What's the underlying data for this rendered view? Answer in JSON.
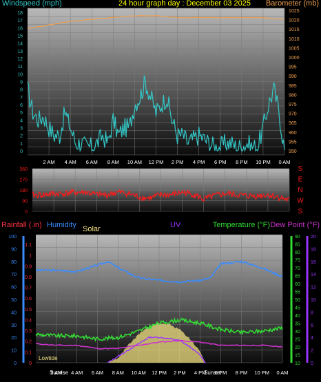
{
  "title": "24 hour graph day : December 03 2025",
  "time_labels": [
    "2 AM",
    "4 AM",
    "6 AM",
    "8 AM",
    "10 AM",
    "12 PM",
    "2 PM",
    "4 PM",
    "6 PM",
    "8 PM",
    "10 PM",
    "0 AM"
  ],
  "colors": {
    "windspeed": "#33c8c8",
    "barometer": "#f0a050",
    "direction": "#ff1a1a",
    "rainfall": "#ff3344",
    "humidity": "#3a8cff",
    "solar": "#f0e080",
    "uv": "#9933ff",
    "temperature": "#33dd33",
    "dewpoint": "#cc33cc",
    "title": "#ffff00"
  },
  "chart_data": [
    {
      "type": "line",
      "name": "wind-barometer",
      "title": "24 hour graph day : December 03 2025",
      "xlabel": "",
      "x_ticks": [
        "2 AM",
        "4 AM",
        "6 AM",
        "8 AM",
        "10 AM",
        "12 PM",
        "2 PM",
        "4 PM",
        "6 PM",
        "8 PM",
        "10 PM",
        "0 AM"
      ],
      "left_axis": {
        "label": "Windspeed (mph)",
        "ylim": [
          0,
          18
        ],
        "ticks": [
          "0",
          "1",
          "2",
          "3",
          "4",
          "5",
          "6",
          "7",
          "8",
          "9",
          "10",
          "11",
          "12",
          "13",
          "14",
          "15",
          "16",
          "17",
          "18"
        ]
      },
      "right_axis": {
        "label": "Barometer (mb)",
        "ylim": [
          948,
          1025
        ],
        "ticks": [
          "950",
          "955",
          "960",
          "965",
          "970",
          "975",
          "980",
          "985",
          "990",
          "995",
          "1000",
          "1005",
          "1010",
          "1015",
          "1020",
          "1025"
        ]
      },
      "series": [
        {
          "axis": "left",
          "x_hours": [
            0,
            0.5,
            1,
            1.5,
            2,
            2.5,
            3,
            3.5,
            4,
            4.5,
            5,
            5.5,
            6,
            6.5,
            7,
            7.5,
            8,
            8.5,
            9,
            9.5,
            10,
            10.5,
            11,
            11.5,
            12,
            12.5,
            13,
            13.5,
            14,
            14.5,
            15,
            15.5,
            16,
            16.5,
            17,
            17.5,
            18,
            18.5,
            19,
            19.5,
            20,
            20.5,
            21,
            21.5,
            22,
            22.5,
            23,
            23.5,
            24
          ],
          "values": [
            8,
            5,
            4,
            4.5,
            3,
            2,
            2,
            5,
            3,
            1,
            1,
            0.5,
            0.5,
            1,
            2,
            1,
            4,
            2,
            3,
            3,
            6,
            7,
            9,
            7,
            5,
            6,
            7,
            4,
            2,
            2,
            1,
            1.5,
            2,
            1.5,
            1,
            0.5,
            0.5,
            1,
            1,
            0.5,
            0.5,
            1,
            0.5,
            0.5,
            3,
            6,
            8,
            5,
            0
          ]
        },
        {
          "axis": "right",
          "x_hours": [
            0,
            2,
            4,
            6,
            8,
            10,
            12,
            14,
            16,
            18,
            20,
            22,
            24
          ],
          "values": [
            1015,
            1017,
            1019,
            1020,
            1021,
            1022,
            1022,
            1021,
            1021,
            1021,
            1021,
            1021,
            1020
          ]
        }
      ]
    },
    {
      "type": "line",
      "name": "wind-direction",
      "left_axis": {
        "ylim": [
          0,
          360
        ],
        "ticks": [
          "0",
          "90",
          "180",
          "270",
          "360"
        ]
      },
      "right_labels": [
        "S",
        "E",
        "N",
        "W",
        "S"
      ],
      "series": [
        {
          "x_hours": [
            0,
            1,
            2,
            3,
            4,
            5,
            6,
            7,
            8,
            9,
            10,
            11,
            12,
            13,
            14,
            15,
            16,
            17,
            18,
            19,
            20,
            21,
            22,
            23,
            24
          ],
          "values": [
            135,
            140,
            150,
            150,
            160,
            160,
            140,
            140,
            160,
            150,
            120,
            110,
            140,
            140,
            160,
            145,
            100,
            130,
            150,
            140,
            130,
            130,
            140,
            120,
            90
          ]
        }
      ]
    },
    {
      "type": "line",
      "name": "temperature-humidity-rain",
      "x_ticks": [
        "2 AM",
        "4 AM",
        "6 AM",
        "8 AM",
        "10 AM",
        "12 PM",
        "2 PM",
        "4 PM",
        "6 PM",
        "8 PM",
        "10 PM",
        "0 AM"
      ],
      "legend": [
        "Rainfall (.in)",
        "Humidity",
        "Solar",
        "UV",
        "Temperature (°F)",
        "Dew Point (°F)"
      ],
      "axes": {
        "rainfall": {
          "label": "Rainfall (.in)",
          "ylim": [
            0,
            1.2
          ],
          "ticks": [
            "0",
            "0.1",
            "0.2",
            "0.3",
            "0.4",
            "0.5",
            "0.6",
            "0.7",
            "0.8",
            "0.9",
            "1",
            "1.1"
          ]
        },
        "humidity": {
          "label": "Humidity",
          "ylim": [
            0,
            100
          ],
          "ticks": [
            "0",
            "10",
            "20",
            "30",
            "40",
            "50",
            "60",
            "70",
            "80",
            "90",
            "100"
          ]
        },
        "temperature": {
          "label": "Temperature (°F)",
          "ylim": [
            10,
            90
          ],
          "ticks": [
            "10",
            "15",
            "20",
            "25",
            "30",
            "35",
            "40",
            "45",
            "50",
            "55",
            "60",
            "65",
            "70",
            "75",
            "80",
            "85",
            "90"
          ]
        },
        "uv": {
          "label": "UV",
          "ylim": [
            0,
            20
          ],
          "ticks": [
            "0",
            "2",
            "4",
            "6",
            "8",
            "10",
            "12",
            "14",
            "16",
            "18",
            "20"
          ]
        }
      },
      "series": [
        {
          "name": "Humidity",
          "axis": "humidity",
          "x_hours": [
            0,
            2,
            4,
            6,
            7,
            8,
            10,
            12,
            14,
            16,
            17,
            18,
            20,
            22,
            24
          ],
          "values": [
            73,
            73,
            72,
            77,
            80,
            75,
            67,
            65,
            64,
            65,
            67,
            78,
            80,
            75,
            68
          ]
        },
        {
          "name": "Temperature (°F)",
          "axis": "temperature",
          "x_hours": [
            0,
            2,
            4,
            6,
            8,
            10,
            12,
            14,
            16,
            18,
            20,
            22,
            24
          ],
          "values": [
            28,
            27,
            27,
            25,
            26,
            30,
            35,
            37,
            35,
            31,
            29,
            30,
            32
          ]
        },
        {
          "name": "Dew Point (°F)",
          "axis": "temperature",
          "x_hours": [
            0,
            2,
            4,
            6,
            8,
            10,
            12,
            14,
            16,
            18,
            20,
            22,
            24
          ],
          "values": [
            22,
            21,
            21,
            19,
            19,
            21,
            23,
            24,
            23,
            21,
            21,
            21,
            20
          ]
        },
        {
          "name": "Solar",
          "axis": "temperature",
          "x_hours": [
            7,
            8,
            9,
            10,
            11,
            12,
            13,
            14,
            15,
            16,
            16.5
          ],
          "values": [
            10,
            13,
            21,
            28,
            33,
            35,
            34,
            31,
            25,
            17,
            10
          ]
        },
        {
          "name": "UV",
          "axis": "uv",
          "x_hours": [
            7,
            9,
            10,
            11,
            12,
            13,
            14,
            15,
            16,
            16.5
          ],
          "values": [
            0,
            2,
            3,
            4,
            4,
            3.8,
            3.5,
            2.5,
            1.2,
            0
          ]
        }
      ],
      "annotations": {
        "lowtide": "Lowtide",
        "sunrise": "Sunrise",
        "sunset": "Sunset"
      }
    }
  ]
}
